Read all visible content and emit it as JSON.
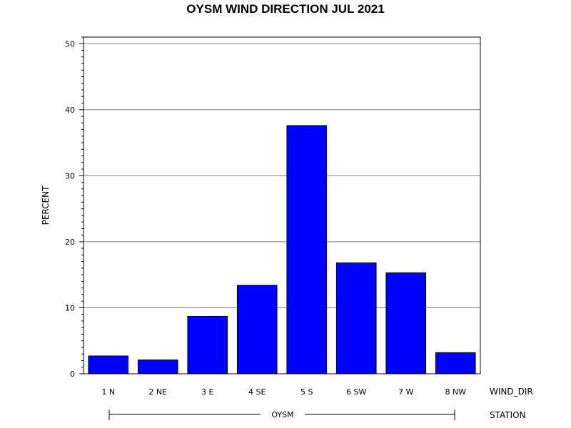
{
  "chart_data": {
    "type": "bar",
    "title": "OYSM WIND DIRECTION JUL 2021",
    "ylabel": "PERCENT",
    "xlabel": "WIND_DIR",
    "group_label": "STATION",
    "group_value": "OYSM",
    "categories": [
      "1 N",
      "2 NE",
      "3 E",
      "4 SE",
      "5 S",
      "6 SW",
      "7 W",
      "8 NW"
    ],
    "values": [
      2.7,
      2.1,
      8.7,
      13.4,
      37.6,
      16.8,
      15.3,
      3.2
    ],
    "ylim": [
      0,
      51
    ],
    "yticks": [
      0,
      10,
      20,
      30,
      40,
      50
    ],
    "grid": true,
    "legend": "none",
    "bar_color": "#0000ff"
  }
}
